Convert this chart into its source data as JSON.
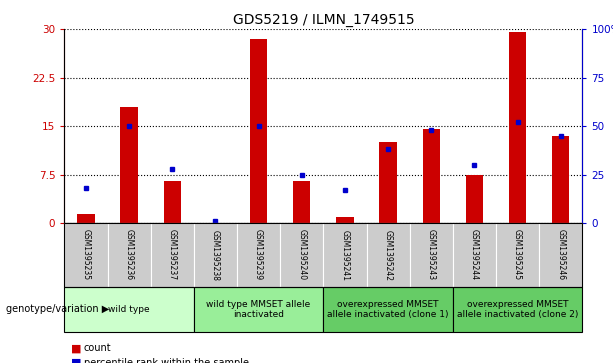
{
  "title": "GDS5219 / ILMN_1749515",
  "samples": [
    "GSM1395235",
    "GSM1395236",
    "GSM1395237",
    "GSM1395238",
    "GSM1395239",
    "GSM1395240",
    "GSM1395241",
    "GSM1395242",
    "GSM1395243",
    "GSM1395244",
    "GSM1395245",
    "GSM1395246"
  ],
  "counts": [
    1.5,
    18.0,
    6.5,
    0.0,
    28.5,
    6.5,
    1.0,
    12.5,
    14.5,
    7.5,
    29.5,
    13.5
  ],
  "percentiles": [
    18.0,
    50.0,
    28.0,
    1.0,
    50.0,
    25.0,
    17.0,
    38.0,
    48.0,
    30.0,
    52.0,
    45.0
  ],
  "ylim_left": [
    0,
    30
  ],
  "ylim_right": [
    0,
    100
  ],
  "yticks_left": [
    0,
    7.5,
    15,
    22.5,
    30
  ],
  "yticks_right": [
    0,
    25,
    50,
    75,
    100
  ],
  "bar_color": "#cc0000",
  "dot_color": "#0000cc",
  "groups": [
    {
      "label": "wild type",
      "start": 0,
      "end": 3,
      "color": "#ccffcc"
    },
    {
      "label": "wild type MMSET allele\ninactivated",
      "start": 3,
      "end": 6,
      "color": "#99ee99"
    },
    {
      "label": "overexpressed MMSET\nallele inactivated (clone 1)",
      "start": 6,
      "end": 9,
      "color": "#66cc66"
    },
    {
      "label": "overexpressed MMSET\nallele inactivated (clone 2)",
      "start": 9,
      "end": 12,
      "color": "#66cc66"
    }
  ],
  "legend_count_label": "count",
  "legend_pct_label": "percentile rank within the sample",
  "genotype_label": "genotype/variation",
  "title_fontsize": 10,
  "axis_fontsize": 7.5,
  "sample_fontsize": 5.5,
  "group_fontsize": 6.5,
  "legend_fontsize": 7,
  "bar_width": 0.4
}
